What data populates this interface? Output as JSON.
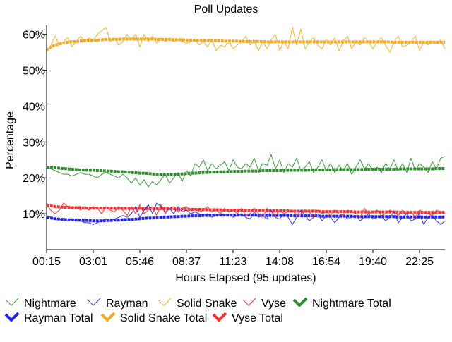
{
  "chart_data": {
    "type": "line",
    "title": "Poll Updates",
    "xlabel": "Hours Elapsed (95 updates)",
    "ylabel": "Percentage",
    "x_tick_labels": [
      "00:15",
      "03:01",
      "05:46",
      "08:37",
      "11:23",
      "14:08",
      "16:54",
      "19:40",
      "22:25"
    ],
    "x_tick_index": [
      0,
      11,
      22,
      33,
      44,
      55,
      66,
      77,
      88
    ],
    "y_ticks": [
      10,
      20,
      30,
      40,
      50,
      60
    ],
    "y_tick_labels": [
      "10%",
      "20%",
      "30%",
      "40%",
      "50%",
      "60%"
    ],
    "ylim": [
      0,
      62.5
    ],
    "n_updates": 95,
    "legend_position": "bottom",
    "series": [
      {
        "name": "Nightmare",
        "color": "#3a9a3a",
        "style": "thin",
        "values": [
          23,
          22.5,
          22,
          21.5,
          21,
          21,
          20.5,
          21,
          21.5,
          21,
          21,
          20.5,
          20,
          21,
          21.5,
          21,
          20.5,
          20,
          21,
          20,
          18.5,
          20,
          18,
          19.5,
          17.5,
          19,
          18,
          19.5,
          21,
          18.5,
          20,
          21.5,
          19,
          22,
          20.5,
          24,
          23,
          25,
          22,
          24,
          22.5,
          23.5,
          24.5,
          22,
          25,
          23,
          22.5,
          24,
          23,
          25.5,
          22,
          24,
          23.5,
          26.5,
          22.5,
          25,
          21.5,
          24,
          23,
          25.5,
          22,
          23,
          24.5,
          21.5,
          23,
          25,
          22,
          24,
          21.5,
          23.5,
          22,
          24,
          21,
          23,
          25,
          22.5,
          24,
          22,
          23,
          21.5,
          24,
          22.5,
          25,
          22,
          24,
          21.5,
          25.5,
          22,
          24,
          23,
          21.5,
          24.5,
          22.5,
          25.5,
          26
        ]
      },
      {
        "name": "Rayman",
        "color": "#3333dd",
        "style": "thin",
        "values": [
          9.5,
          9,
          8.5,
          8.5,
          8,
          8,
          8.5,
          8,
          8,
          7.5,
          7.5,
          7,
          7.5,
          8,
          8.5,
          8,
          8.5,
          9,
          9.5,
          9,
          10,
          12,
          9,
          11,
          12.5,
          10,
          13,
          12,
          10.5,
          11.5,
          10,
          12,
          10.5,
          11,
          10,
          10.5,
          10,
          9.5,
          10,
          9,
          9.5,
          10,
          9.5,
          10,
          9,
          9.5,
          10,
          9,
          8.5,
          10.5,
          9,
          9.5,
          8.5,
          11,
          9,
          8.5,
          10,
          9,
          7,
          9,
          11,
          9.5,
          8,
          9,
          10,
          8,
          9.5,
          9,
          7.5,
          9,
          10,
          8.5,
          9,
          9.5,
          8,
          9,
          10,
          8.5,
          9,
          9.5,
          8,
          9,
          10.5,
          7.5,
          9,
          10,
          8,
          8.5,
          10,
          7,
          9,
          9.5,
          8,
          7,
          8
        ]
      },
      {
        "name": "Solid Snake",
        "color": "#f4b32a",
        "style": "thin",
        "values": [
          55,
          57,
          59.5,
          57,
          58,
          59,
          56.5,
          58,
          59.5,
          58,
          59,
          58.5,
          60,
          61,
          62,
          58,
          59,
          57,
          58,
          60,
          58.5,
          60,
          56.5,
          60,
          58,
          59.5,
          57.5,
          59,
          58,
          58.5,
          58,
          58.5,
          58,
          57.5,
          58,
          58.5,
          57,
          58,
          56.5,
          58.5,
          55.5,
          57,
          56.5,
          58,
          56,
          57,
          58,
          59.5,
          57,
          58,
          55.5,
          58,
          56,
          58.5,
          60,
          55.5,
          58,
          56,
          62,
          57,
          61.5,
          56,
          58,
          59,
          57,
          56,
          58.5,
          57,
          59,
          55.5,
          58,
          59.5,
          56,
          58,
          57,
          59,
          58,
          56,
          58,
          59,
          57,
          55,
          58,
          59.5,
          56.5,
          57,
          58,
          59.5,
          55.5,
          58,
          57,
          58,
          57.5,
          58.5,
          56
        ]
      },
      {
        "name": "Vyse",
        "color": "#ee3333",
        "style": "thin",
        "values": [
          12.5,
          11,
          10,
          11,
          13,
          12,
          11.5,
          12,
          11,
          12,
          11,
          12,
          11.5,
          10,
          12,
          11,
          10.5,
          12,
          11,
          9.5,
          12,
          10,
          12.5,
          10,
          11,
          12,
          9.5,
          12.5,
          10,
          11.5,
          12,
          10.5,
          11.5,
          12,
          11,
          11.5,
          10.5,
          11,
          12,
          10.5,
          11,
          10,
          11.5,
          10.5,
          11,
          10,
          11.5,
          9.5,
          10,
          11.5,
          10,
          9,
          11.5,
          10.5,
          9.5,
          11,
          10,
          10.5,
          11,
          9.5,
          10,
          11,
          10.5,
          9,
          11,
          10,
          10.5,
          9.5,
          11,
          10,
          9.5,
          11,
          10.5,
          10,
          9,
          11.5,
          10,
          10.5,
          11,
          9.5,
          10,
          11,
          10.5,
          9.5,
          11,
          10,
          10.5,
          9,
          11,
          10.5,
          10,
          9.5,
          11,
          10.5,
          10
        ]
      },
      {
        "name": "Nightmare Total",
        "color": "#2e8b2e",
        "style": "thick",
        "values": [
          23,
          22.9,
          22.8,
          22.7,
          22.6,
          22.5,
          22.4,
          22.3,
          22.2,
          22.2,
          22.1,
          22.1,
          22,
          22,
          21.9,
          21.9,
          21.8,
          21.7,
          21.7,
          21.6,
          21.5,
          21.4,
          21.3,
          21.3,
          21.2,
          21.1,
          21,
          21,
          21,
          21,
          21,
          21,
          21.1,
          21.2,
          21.3,
          21.3,
          21.4,
          21.5,
          21.5,
          21.6,
          21.6,
          21.7,
          21.7,
          21.7,
          21.8,
          21.8,
          21.8,
          21.9,
          21.9,
          21.9,
          21.9,
          22,
          22,
          22,
          22,
          22,
          22.1,
          22.1,
          22.1,
          22.1,
          22.1,
          22.1,
          22.2,
          22.2,
          22.2,
          22.2,
          22.2,
          22.2,
          22.3,
          22.3,
          22.3,
          22.3,
          22.3,
          22.3,
          22.3,
          22.4,
          22.4,
          22.4,
          22.4,
          22.4,
          22.4,
          22.4,
          22.4,
          22.5,
          22.5,
          22.5,
          22.5,
          22.5,
          22.5,
          22.5,
          22.5,
          22.5,
          22.6,
          22.6,
          22.6
        ]
      },
      {
        "name": "Rayman Total",
        "color": "#2222ee",
        "style": "thick",
        "values": [
          9,
          8.8,
          8.6,
          8.5,
          8.4,
          8.3,
          8.3,
          8.2,
          8.2,
          8.1,
          8.1,
          8,
          8,
          8,
          8.1,
          8.1,
          8.2,
          8.2,
          8.3,
          8.4,
          8.4,
          8.5,
          8.6,
          8.7,
          8.8,
          8.8,
          8.9,
          9,
          9.1,
          9.1,
          9.2,
          9.2,
          9.3,
          9.3,
          9.4,
          9.4,
          9.4,
          9.5,
          9.5,
          9.5,
          9.6,
          9.6,
          9.6,
          9.6,
          9.6,
          9.6,
          9.6,
          9.6,
          9.6,
          9.6,
          9.6,
          9.6,
          9.5,
          9.5,
          9.5,
          9.5,
          9.5,
          9.5,
          9.4,
          9.4,
          9.4,
          9.4,
          9.4,
          9.4,
          9.4,
          9.3,
          9.3,
          9.3,
          9.3,
          9.3,
          9.3,
          9.3,
          9.3,
          9.2,
          9.2,
          9.2,
          9.2,
          9.2,
          9.2,
          9.2,
          9.2,
          9.2,
          9.2,
          9.1,
          9.1,
          9.1,
          9.1,
          9.1,
          9.1,
          9.1,
          9.1,
          9.1,
          9.1,
          9.1,
          9.1
        ]
      },
      {
        "name": "Solid Snake Total",
        "color": "#f5a623",
        "style": "thick",
        "values": [
          55.5,
          56.5,
          57,
          57.3,
          57.6,
          57.8,
          58,
          58,
          58.1,
          58.2,
          58.3,
          58.3,
          58.4,
          58.5,
          58.6,
          58.6,
          58.6,
          58.6,
          58.7,
          58.7,
          58.7,
          58.7,
          58.7,
          58.7,
          58.7,
          58.7,
          58.6,
          58.6,
          58.6,
          58.6,
          58.5,
          58.5,
          58.5,
          58.4,
          58.4,
          58.4,
          58.3,
          58.3,
          58.3,
          58.2,
          58.2,
          58.2,
          58.1,
          58.1,
          58.1,
          58.1,
          58,
          58,
          58,
          58,
          58,
          58,
          57.9,
          57.9,
          57.9,
          57.9,
          57.9,
          57.9,
          57.9,
          57.9,
          57.9,
          57.9,
          57.9,
          57.9,
          57.9,
          57.9,
          57.9,
          57.9,
          57.9,
          57.9,
          57.9,
          57.9,
          57.9,
          57.9,
          57.9,
          57.9,
          57.9,
          57.9,
          57.9,
          57.9,
          57.9,
          57.9,
          57.8,
          57.8,
          57.8,
          57.8,
          57.8,
          57.8,
          57.8,
          57.8,
          57.8,
          57.8,
          57.8,
          57.8,
          57.8
        ]
      },
      {
        "name": "Vyse Total",
        "color": "#ff2e2e",
        "style": "thick",
        "values": [
          12.5,
          12.2,
          12,
          11.9,
          11.8,
          11.8,
          11.7,
          11.7,
          11.7,
          11.6,
          11.6,
          11.6,
          11.6,
          11.6,
          11.6,
          11.6,
          11.5,
          11.5,
          11.5,
          11.5,
          11.5,
          11.5,
          11.5,
          11.4,
          11.4,
          11.4,
          11.4,
          11.4,
          11.4,
          11.4,
          11.3,
          11.3,
          11.3,
          11.3,
          11.2,
          11.2,
          11.2,
          11.2,
          11.1,
          11.1,
          11.1,
          11.1,
          11,
          11,
          11,
          11,
          11,
          10.9,
          10.9,
          10.9,
          10.9,
          10.9,
          10.8,
          10.8,
          10.8,
          10.8,
          10.8,
          10.8,
          10.7,
          10.7,
          10.7,
          10.7,
          10.7,
          10.7,
          10.7,
          10.6,
          10.6,
          10.6,
          10.6,
          10.6,
          10.6,
          10.6,
          10.6,
          10.5,
          10.5,
          10.5,
          10.5,
          10.5,
          10.5,
          10.5,
          10.5,
          10.5,
          10.5,
          10.5,
          10.4,
          10.4,
          10.4,
          10.4,
          10.4,
          10.4,
          10.4,
          10.4,
          10.4,
          10.4,
          10.4
        ]
      }
    ]
  }
}
